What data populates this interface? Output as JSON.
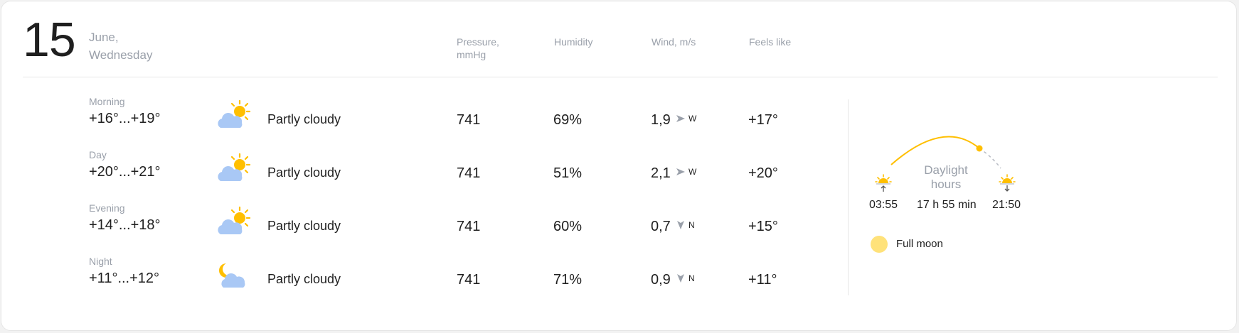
{
  "date": {
    "day": "15",
    "month": "June,",
    "weekday": "Wednesday"
  },
  "headers": {
    "pressure_line1": "Pressure,",
    "pressure_line2": "mmHg",
    "humidity": "Humidity",
    "wind": "Wind, m/s",
    "feels_like": "Feels like"
  },
  "rows": [
    {
      "period": "Morning",
      "temp": "+16°...+19°",
      "icon": "partly-cloudy-day-icon",
      "condition": "Partly cloudy",
      "pressure": "741",
      "humidity": "69%",
      "wind_speed": "1,9",
      "wind_dir": "W",
      "feels": "+17°"
    },
    {
      "period": "Day",
      "temp": "+20°...+21°",
      "icon": "partly-cloudy-day-icon",
      "condition": "Partly cloudy",
      "pressure": "741",
      "humidity": "51%",
      "wind_speed": "2,1",
      "wind_dir": "W",
      "feels": "+20°"
    },
    {
      "period": "Evening",
      "temp": "+14°...+18°",
      "icon": "partly-cloudy-day-icon",
      "condition": "Partly cloudy",
      "pressure": "741",
      "humidity": "60%",
      "wind_speed": "0,7",
      "wind_dir": "N",
      "feels": "+15°"
    },
    {
      "period": "Night",
      "temp": "+11°...+12°",
      "icon": "partly-cloudy-night-icon",
      "condition": "Partly cloudy",
      "pressure": "741",
      "humidity": "71%",
      "wind_speed": "0,9",
      "wind_dir": "N",
      "feels": "+11°"
    }
  ],
  "sun": {
    "sunrise": "03:55",
    "sunset": "21:50",
    "daylight_label_1": "Daylight",
    "daylight_label_2": "hours",
    "daylight_duration": "17 h 55 min"
  },
  "moon": {
    "phase": "Full moon"
  },
  "colors": {
    "sun": "#ffbf00",
    "cloud": "#a9c8f5",
    "moon": "#ffe27a",
    "muted": "#9aa0aa",
    "text": "#1f1f1f"
  }
}
